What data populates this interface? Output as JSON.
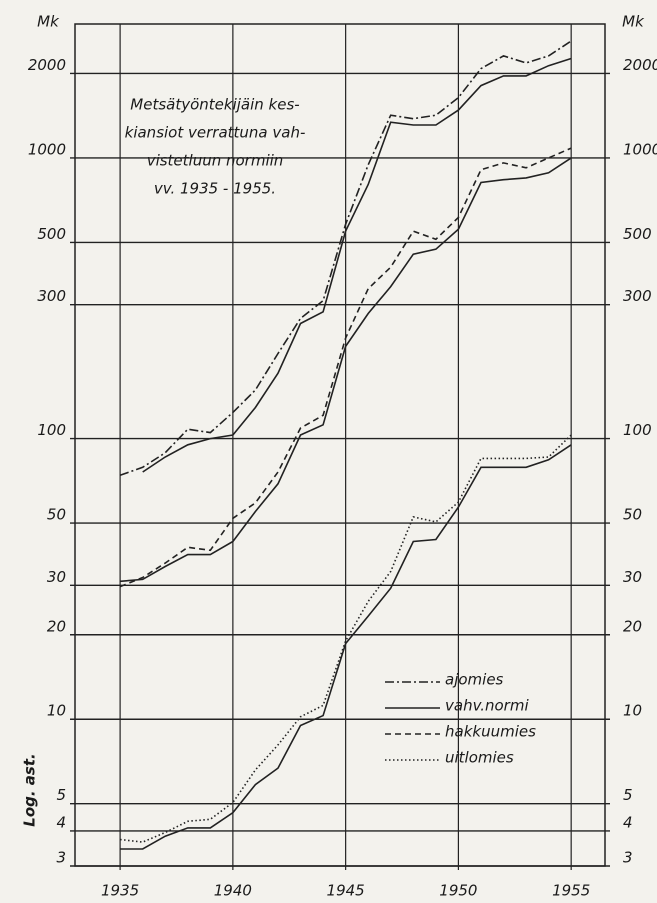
{
  "chart_data": {
    "type": "line",
    "title": [
      "Metsätyöntekijäin kes-",
      "kiansiot verrattuna vah-",
      "vistetluun normiin",
      "vv. 1935 - 1955."
    ],
    "y_unit": "Mk",
    "y_label": "Log. ast.",
    "log_y": true,
    "grid": true,
    "x": [
      1935,
      1936,
      1937,
      1938,
      1939,
      1940,
      1941,
      1942,
      1943,
      1944,
      1945,
      1946,
      1947,
      1948,
      1949,
      1950,
      1951,
      1952,
      1953,
      1954,
      1955
    ],
    "xlim": [
      1933,
      1956.5
    ],
    "xticks": [
      1935,
      1940,
      1945,
      1950,
      1955
    ],
    "ylim": [
      3,
      3000
    ],
    "yticks": [
      3,
      4,
      5,
      10,
      20,
      30,
      50,
      100,
      300,
      500,
      1000,
      2000
    ],
    "series": [
      {
        "name": "ajomies",
        "color": "#222222",
        "style": "dashdot",
        "values": [
          74,
          79,
          89,
          108,
          105,
          124,
          149,
          201,
          268,
          310,
          580,
          945,
          1420,
          1380,
          1420,
          1640,
          2080,
          2310,
          2180,
          2310,
          2610
        ]
      },
      {
        "name": "vahv.normi",
        "color": "#222222",
        "style": "solid",
        "values": [
          null,
          76,
          86,
          95,
          100,
          103,
          129,
          171,
          257,
          283,
          548,
          804,
          1340,
          1310,
          1310,
          1480,
          1810,
          1960,
          1960,
          2130,
          2260
        ]
      },
      {
        "name": "hakkuumies",
        "color": "#222222",
        "style": "dashed",
        "values": [
          29.7,
          32,
          36,
          41,
          40,
          52,
          59,
          76,
          109,
          121,
          228,
          342,
          408,
          548,
          513,
          614,
          908,
          960,
          922,
          1000,
          1084
        ]
      },
      {
        "name": "vahv.normi",
        "color": "#222222",
        "style": "solid",
        "values": [
          31,
          31.5,
          35,
          38.6,
          38.6,
          43,
          55,
          69,
          103,
          112,
          213,
          279,
          348,
          454,
          473,
          557,
          817,
          836,
          849,
          885,
          1000
        ]
      },
      {
        "name": "uitlomies",
        "color": "#222222",
        "style": "dotted",
        "values": [
          3.73,
          3.65,
          3.95,
          4.33,
          4.4,
          5.05,
          6.6,
          8.1,
          10.2,
          11.2,
          19,
          26.3,
          33.6,
          52.6,
          50.5,
          59.4,
          85,
          85,
          85,
          86,
          103
        ]
      },
      {
        "name": "vahv.normi",
        "color": "#222222",
        "style": "solid",
        "values": [
          3.45,
          3.45,
          3.83,
          4.1,
          4.1,
          4.65,
          5.85,
          6.7,
          9.5,
          10.3,
          18.6,
          23.3,
          29.3,
          43,
          43.7,
          57,
          79,
          79,
          79,
          84,
          95
        ]
      }
    ]
  }
}
